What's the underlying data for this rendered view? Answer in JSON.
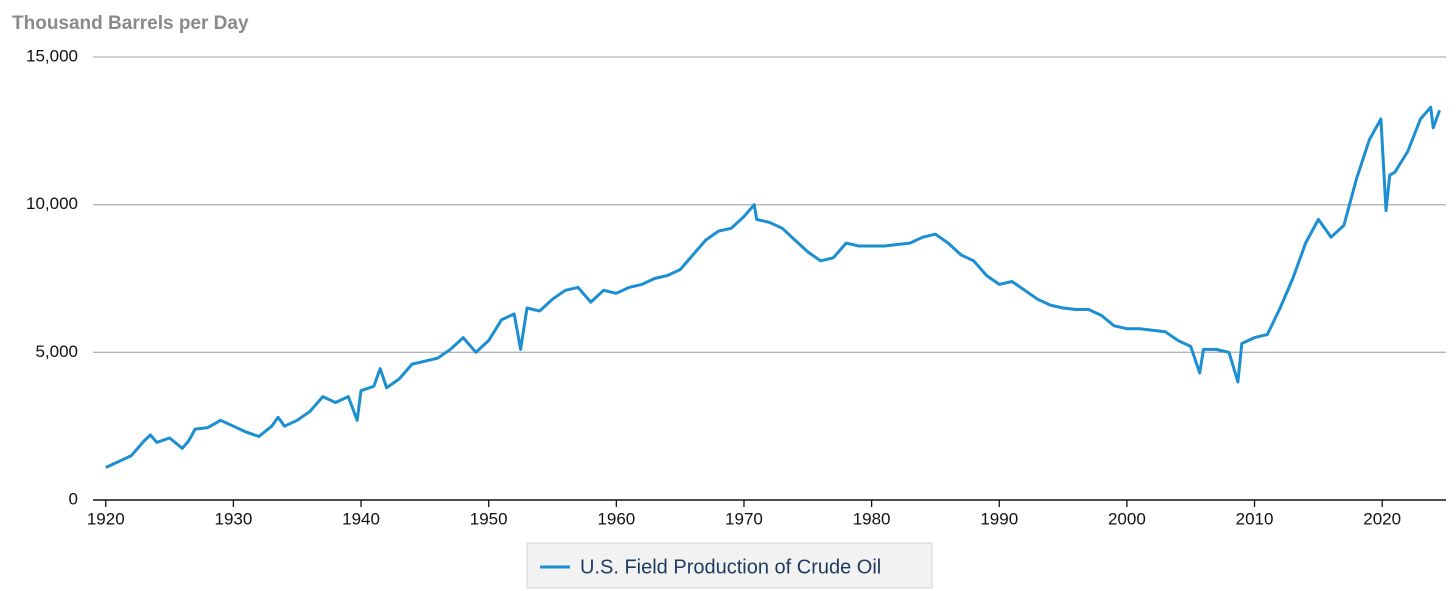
{
  "chart_data": {
    "type": "line",
    "y_axis_label": "Thousand Barrels per Day",
    "xlim": [
      1919,
      2025
    ],
    "ylim": [
      0,
      15000
    ],
    "xticks": [
      1920,
      1930,
      1940,
      1950,
      1960,
      1970,
      1980,
      1990,
      2000,
      2010,
      2020
    ],
    "yticks": [
      0,
      {
        "value": 5000,
        "label": "5,000"
      },
      {
        "value": 10000,
        "label": "10,000"
      },
      {
        "value": 15000,
        "label": "15,000"
      }
    ],
    "grid": true,
    "legend": "bottom",
    "x": [
      1920,
      1921,
      1922,
      1923,
      1923.5,
      1924,
      1925,
      1926,
      1926.5,
      1927,
      1928,
      1929,
      1930,
      1931,
      1932,
      1933,
      1933.5,
      1934,
      1935,
      1936,
      1937,
      1938,
      1939,
      1939.7,
      1940,
      1941,
      1941.5,
      1942,
      1943,
      1944,
      1945,
      1946,
      1947,
      1948,
      1949,
      1950,
      1951,
      1952,
      1952.5,
      1953,
      1954,
      1955,
      1956,
      1957,
      1958,
      1959,
      1960,
      1961,
      1962,
      1963,
      1964,
      1965,
      1966,
      1967,
      1968,
      1969,
      1970,
      1970.8,
      1971,
      1972,
      1973,
      1974,
      1975,
      1976,
      1977,
      1978,
      1979,
      1980,
      1981,
      1982,
      1983,
      1984,
      1985,
      1986,
      1987,
      1988,
      1989,
      1990,
      1991,
      1992,
      1993,
      1994,
      1995,
      1996,
      1997,
      1998,
      1999,
      2000,
      2001,
      2002,
      2003,
      2004,
      2005,
      2005.7,
      2006,
      2007,
      2008,
      2008.7,
      2009,
      2010,
      2011,
      2012,
      2013,
      2014,
      2015,
      2016,
      2017,
      2018,
      2019,
      2019.9,
      2020.3,
      2020.6,
      2021,
      2022,
      2023,
      2023.8,
      2024,
      2024.5
    ],
    "series": [
      {
        "name": "U.S. Field Production of Crude Oil",
        "color": "#1b8fd2",
        "values": [
          1100,
          1300,
          1500,
          2000,
          2200,
          1950,
          2100,
          1750,
          2000,
          2400,
          2450,
          2700,
          2500,
          2300,
          2150,
          2500,
          2800,
          2500,
          2700,
          3000,
          3500,
          3300,
          3500,
          2700,
          3700,
          3850,
          4450,
          3800,
          4100,
          4600,
          4700,
          4800,
          5100,
          5500,
          5000,
          5400,
          6100,
          6300,
          5100,
          6500,
          6400,
          6800,
          7100,
          7200,
          6700,
          7100,
          7000,
          7200,
          7300,
          7500,
          7600,
          7800,
          8300,
          8800,
          9100,
          9200,
          9600,
          10000,
          9500,
          9400,
          9200,
          8800,
          8400,
          8100,
          8200,
          8700,
          8600,
          8600,
          8600,
          8650,
          8700,
          8900,
          9000,
          8700,
          8300,
          8100,
          7600,
          7300,
          7400,
          7100,
          6800,
          6600,
          6500,
          6450,
          6450,
          6250,
          5900,
          5800,
          5800,
          5750,
          5700,
          5400,
          5200,
          4300,
          5100,
          5100,
          5000,
          4000,
          5300,
          5500,
          5600,
          6500,
          7500,
          8700,
          9500,
          8900,
          9300,
          10900,
          12200,
          12900,
          9800,
          11000,
          11100,
          11800,
          12900,
          13300,
          12600,
          13200
        ]
      }
    ]
  }
}
